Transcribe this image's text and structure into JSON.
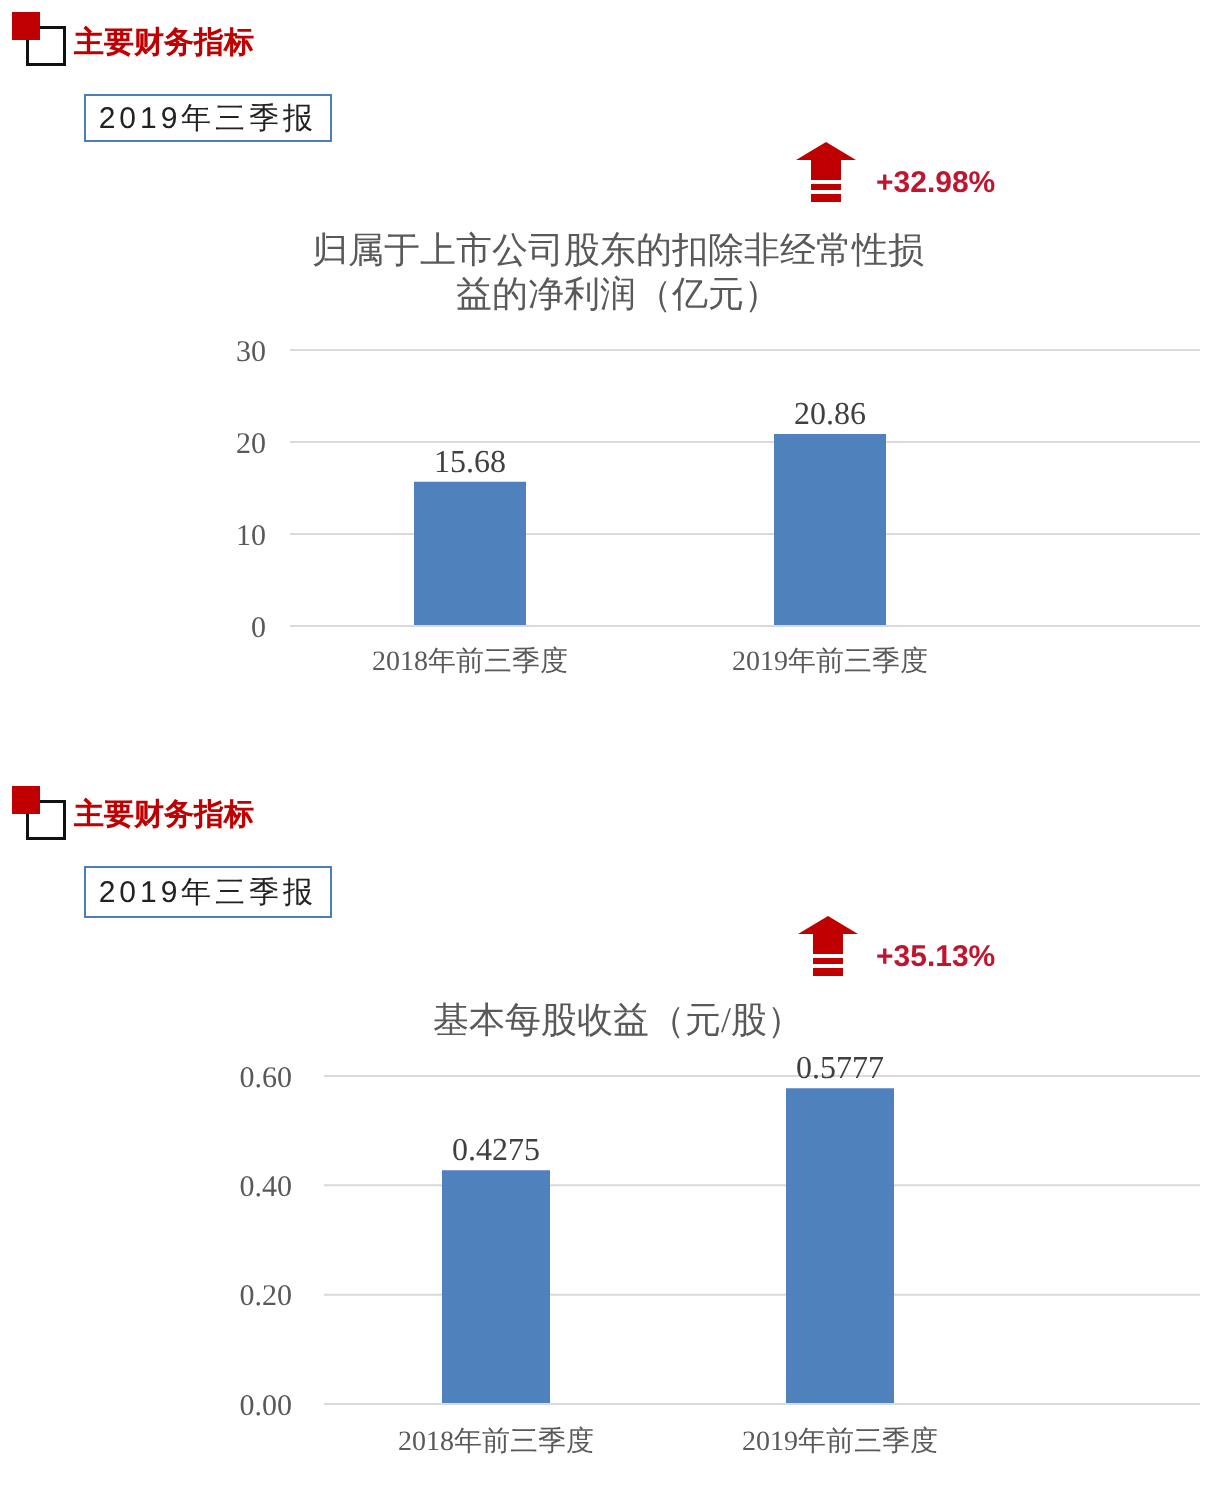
{
  "chart_data": [
    {
      "type": "bar",
      "title": "归属于上市公司股东的扣除非经常性损益的净利润（亿元）",
      "categories": [
        "2018年前三季度",
        "2019年前三季度"
      ],
      "values": [
        15.68,
        20.86
      ],
      "color": "#4f81bd",
      "ylim": [
        0,
        30
      ],
      "yticks": [
        0,
        10,
        20,
        30
      ],
      "grid": "y",
      "data_labels": true,
      "annotations": [
        "主要财务指标",
        "2019年三季报",
        "+32.98%"
      ]
    },
    {
      "type": "bar",
      "title": "基本每股收益（元/股）",
      "categories": [
        "2018年前三季度",
        "2019年前三季度"
      ],
      "values": [
        0.4275,
        0.5777
      ],
      "color": "#4f81bd",
      "ylim": [
        0,
        0.6
      ],
      "yticks": [
        {
          "value": 0,
          "label": "0.00"
        },
        {
          "value": 0.2,
          "label": "0.20"
        },
        {
          "value": 0.4,
          "label": "0.40"
        },
        {
          "value": 0.6,
          "label": "0.60"
        }
      ],
      "grid": "y",
      "data_labels": true,
      "annotations": [
        "主要财务指标",
        "2019年三季报",
        "+35.13%"
      ]
    }
  ]
}
